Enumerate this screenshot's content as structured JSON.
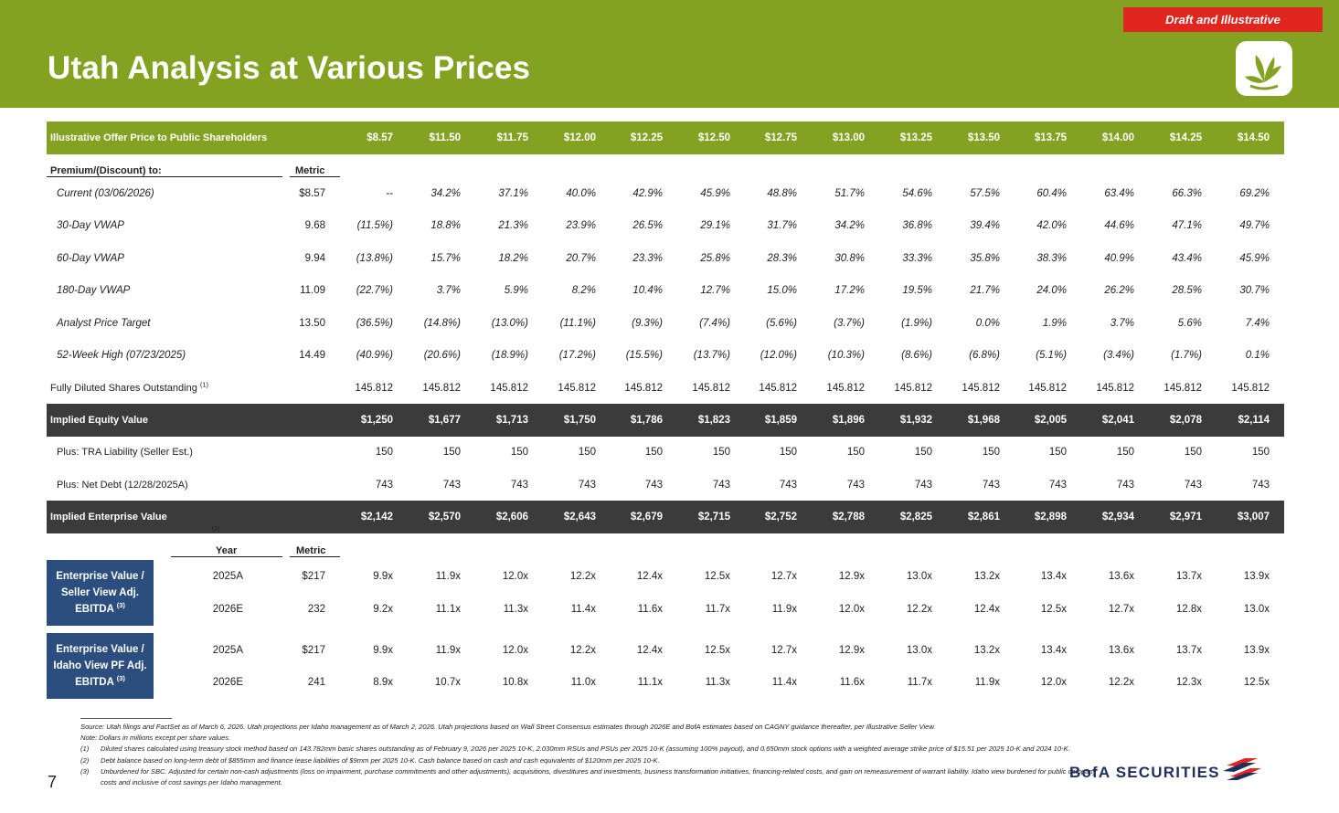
{
  "header": {
    "badge": "Draft and Illustrative",
    "title": "Utah Analysis at Various Prices"
  },
  "offer": {
    "label": "Illustrative Offer Price to Public Shareholders",
    "prices": [
      "$8.57",
      "$11.50",
      "$11.75",
      "$12.00",
      "$12.25",
      "$12.50",
      "$12.75",
      "$13.00",
      "$13.25",
      "$13.50",
      "$13.75",
      "$14.00",
      "$14.25",
      "$14.50"
    ]
  },
  "premium": {
    "header_label": "Premium/(Discount) to:",
    "header_metric": "Metric",
    "rows": [
      {
        "label": "Current (03/06/2026)",
        "metric": "$8.57",
        "values": [
          "--",
          "34.2%",
          "37.1%",
          "40.0%",
          "42.9%",
          "45.9%",
          "48.8%",
          "51.7%",
          "54.6%",
          "57.5%",
          "60.4%",
          "63.4%",
          "66.3%",
          "69.2%"
        ]
      },
      {
        "label": "30-Day VWAP",
        "metric": "9.68",
        "values": [
          "(11.5%)",
          "18.8%",
          "21.3%",
          "23.9%",
          "26.5%",
          "29.1%",
          "31.7%",
          "34.2%",
          "36.8%",
          "39.4%",
          "42.0%",
          "44.6%",
          "47.1%",
          "49.7%"
        ]
      },
      {
        "label": "60-Day VWAP",
        "metric": "9.94",
        "values": [
          "(13.8%)",
          "15.7%",
          "18.2%",
          "20.7%",
          "23.3%",
          "25.8%",
          "28.3%",
          "30.8%",
          "33.3%",
          "35.8%",
          "38.3%",
          "40.9%",
          "43.4%",
          "45.9%"
        ]
      },
      {
        "label": "180-Day VWAP",
        "metric": "11.09",
        "values": [
          "(22.7%)",
          "3.7%",
          "5.9%",
          "8.2%",
          "10.4%",
          "12.7%",
          "15.0%",
          "17.2%",
          "19.5%",
          "21.7%",
          "24.0%",
          "26.2%",
          "28.5%",
          "30.7%"
        ]
      },
      {
        "label": "Analyst Price Target",
        "metric": "13.50",
        "values": [
          "(36.5%)",
          "(14.8%)",
          "(13.0%)",
          "(11.1%)",
          "(9.3%)",
          "(7.4%)",
          "(5.6%)",
          "(3.7%)",
          "(1.9%)",
          "0.0%",
          "1.9%",
          "3.7%",
          "5.6%",
          "7.4%"
        ]
      },
      {
        "label": "52-Week High (07/23/2025)",
        "metric": "14.49",
        "values": [
          "(40.9%)",
          "(20.6%)",
          "(18.9%)",
          "(17.2%)",
          "(15.5%)",
          "(13.7%)",
          "(12.0%)",
          "(10.3%)",
          "(8.6%)",
          "(6.8%)",
          "(5.1%)",
          "(3.4%)",
          "(1.7%)",
          "0.1%"
        ]
      }
    ]
  },
  "shares": {
    "label": "Fully Diluted Shares Outstanding",
    "note": "(1)",
    "values": [
      "145.812",
      "145.812",
      "145.812",
      "145.812",
      "145.812",
      "145.812",
      "145.812",
      "145.812",
      "145.812",
      "145.812",
      "145.812",
      "145.812",
      "145.812",
      "145.812"
    ]
  },
  "equity": {
    "label": "Implied Equity Value",
    "values": [
      "$1,250",
      "$1,677",
      "$1,713",
      "$1,750",
      "$1,786",
      "$1,823",
      "$1,859",
      "$1,896",
      "$1,932",
      "$1,968",
      "$2,005",
      "$2,041",
      "$2,078",
      "$2,114"
    ]
  },
  "tra": {
    "label": "Plus: TRA Liability (Seller Est.)",
    "values": [
      "150",
      "150",
      "150",
      "150",
      "150",
      "150",
      "150",
      "150",
      "150",
      "150",
      "150",
      "150",
      "150",
      "150"
    ]
  },
  "netdebt": {
    "label": "Plus: Net Debt (12/28/2025A)",
    "values": [
      "743",
      "743",
      "743",
      "743",
      "743",
      "743",
      "743",
      "743",
      "743",
      "743",
      "743",
      "743",
      "743",
      "743"
    ]
  },
  "ev": {
    "label": "Implied Enterprise Value",
    "note": "(2)",
    "values": [
      "$2,142",
      "$2,570",
      "$2,606",
      "$2,643",
      "$2,679",
      "$2,715",
      "$2,752",
      "$2,788",
      "$2,825",
      "$2,861",
      "$2,898",
      "$2,934",
      "$2,971",
      "$3,007"
    ]
  },
  "multiples": {
    "year_header": "Year",
    "metric_header": "Metric",
    "groups": [
      {
        "box_line1": "Enterprise Value /",
        "box_line2": "Seller View Adj.",
        "box_line3": "EBITDA",
        "box_note": "(3)",
        "rows": [
          {
            "year": "2025A",
            "metric": "$217",
            "values": [
              "9.9x",
              "11.9x",
              "12.0x",
              "12.2x",
              "12.4x",
              "12.5x",
              "12.7x",
              "12.9x",
              "13.0x",
              "13.2x",
              "13.4x",
              "13.6x",
              "13.7x",
              "13.9x"
            ]
          },
          {
            "year": "2026E",
            "metric": "232",
            "values": [
              "9.2x",
              "11.1x",
              "11.3x",
              "11.4x",
              "11.6x",
              "11.7x",
              "11.9x",
              "12.0x",
              "12.2x",
              "12.4x",
              "12.5x",
              "12.7x",
              "12.8x",
              "13.0x"
            ]
          }
        ]
      },
      {
        "box_line1": "Enterprise Value /",
        "box_line2": "Idaho View PF Adj.",
        "box_line3": "EBITDA",
        "box_note": "(3)",
        "rows": [
          {
            "year": "2025A",
            "metric": "$217",
            "values": [
              "9.9x",
              "11.9x",
              "12.0x",
              "12.2x",
              "12.4x",
              "12.5x",
              "12.7x",
              "12.9x",
              "13.0x",
              "13.2x",
              "13.4x",
              "13.6x",
              "13.7x",
              "13.9x"
            ]
          },
          {
            "year": "2026E",
            "metric": "241",
            "values": [
              "8.9x",
              "10.7x",
              "10.8x",
              "11.0x",
              "11.1x",
              "11.3x",
              "11.4x",
              "11.6x",
              "11.7x",
              "11.9x",
              "12.0x",
              "12.2x",
              "12.3x",
              "12.5x"
            ]
          }
        ]
      }
    ]
  },
  "footnotes": {
    "source": "Source: Utah filings and FactSet as of March 6, 2026. Utah projections per Idaho management as of March 2, 2026. Utah projections based on Wall Street Consensus estimates through 2026E and BofA estimates based on CAGNY guidance thereafter, per Illustrative Seller View.",
    "note": "Note: Dollars in millions except per share values.",
    "fn1_num": "(1)",
    "fn1": "Diluted shares calculated using treasury stock method based on 143.782mm basic shares outstanding as of February 9, 2026 per 2025 10-K, 2.030mm RSUs and PSUs per 2025 10-K (assuming 100% payout), and 0.650mm stock options with a weighted average strike price of $15.51 per 2025 10-K and 2024 10-K.",
    "fn2_num": "(2)",
    "fn2": "Debt balance based on long-term debt of $855mm and finance lease liabilities of $9mm per 2025 10-K. Cash balance based on cash and cash equivalents of $120mm per 2025 10-K.",
    "fn3_num": "(3)",
    "fn3": "Unburdened for SBC. Adjusted for certain non-cash adjustments (loss on impairment, purchase commitments and other adjustments), acquisitions, divestitures and investments, business transformation initiatives, financing-related costs, and gain on remeasurement of warrant liability. Idaho view burdened for public company costs and inclusive of cost savings per Idaho management."
  },
  "footer": {
    "page_number": "7",
    "brand": "BofA SECURITIES"
  },
  "colors": {
    "brand_green": "#84a221",
    "badge_red": "#e0261f",
    "dark_band": "#3b3b3b",
    "navy_box": "#2b4e7e"
  }
}
